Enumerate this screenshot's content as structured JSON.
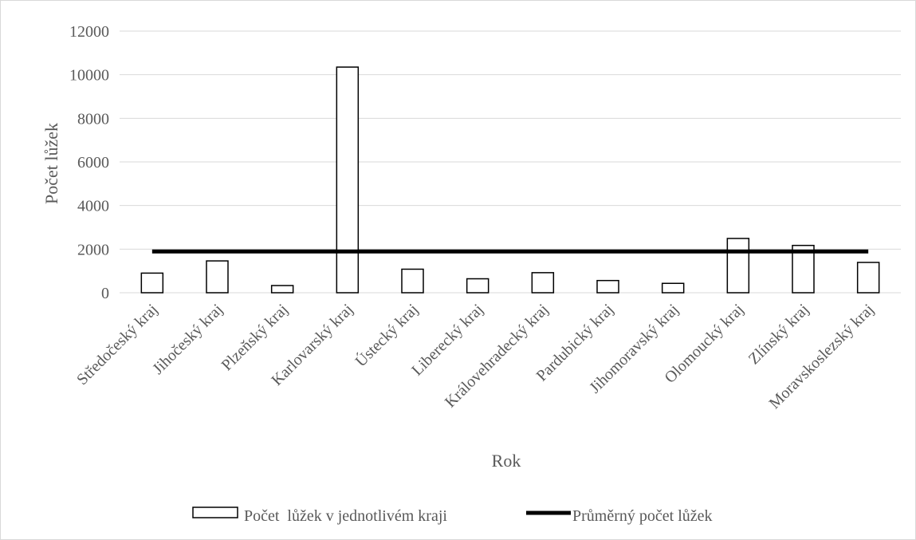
{
  "chart_data": {
    "type": "bar",
    "categories": [
      "Středočeský kraj",
      "Jihočeský kraj",
      "Plzeňský kraj",
      "Karlovarský kraj",
      "Ústecký kraj",
      "Liberecký kraj",
      "Královehradecký kraj",
      "Pardubický kraj",
      "Jihomoravský kraj",
      "Olomoucký kraj",
      "Zlínský kraj",
      "Moravskoslezský kraj"
    ],
    "series": [
      {
        "name": "Počet  lůžek v jednotlivém kraji",
        "type": "bar",
        "values": [
          900,
          1460,
          330,
          10350,
          1080,
          640,
          920,
          560,
          430,
          2490,
          2170,
          1390
        ]
      },
      {
        "name": "Průměrný počet lůžek",
        "type": "line",
        "values": [
          1894,
          1894,
          1894,
          1894,
          1894,
          1894,
          1894,
          1894,
          1894,
          1894,
          1894,
          1894
        ]
      }
    ],
    "xlabel": "Rok",
    "ylabel": "Počet lůžek",
    "ylim": [
      0,
      12000
    ],
    "yticks": [
      "0",
      "2000",
      "4000",
      "6000",
      "8000",
      "10000",
      "12000"
    ],
    "grid": true,
    "legend_position": "bottom",
    "colors": {
      "bar_fill": "#ffffff",
      "bar_stroke": "#000000",
      "line": "#000000",
      "grid": "#d9d9d9",
      "text": "#595959"
    }
  }
}
